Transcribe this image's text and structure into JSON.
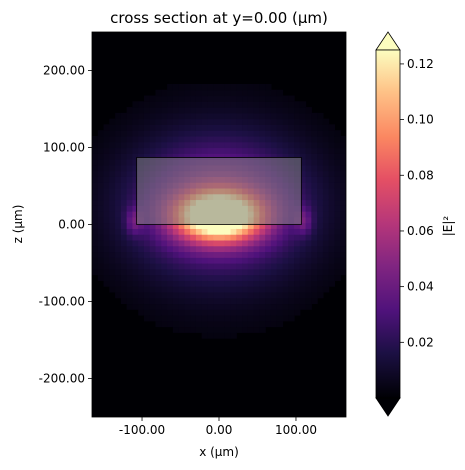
{
  "chart_data": {
    "type": "heatmap",
    "title": "cross section at y=0.00 (µm)",
    "xlabel": "x (µm)",
    "ylabel": "z (µm)",
    "xlim": [
      -165,
      165
    ],
    "ylim": [
      -250,
      250
    ],
    "x_ticks": [
      -100,
      0,
      100
    ],
    "x_tick_labels": [
      "-100.00",
      "0.00",
      "100.00"
    ],
    "y_ticks": [
      -200,
      -100,
      0,
      100,
      200
    ],
    "y_tick_labels": [
      "-200.00",
      "-100.00",
      "0.00",
      "100.00",
      "200.00"
    ],
    "colormap": "magma",
    "colorbar": {
      "label": "|E|²",
      "range": [
        0.0,
        0.125
      ],
      "ticks": [
        0.02,
        0.04,
        0.06,
        0.08,
        0.1,
        0.12
      ],
      "tick_labels": [
        "0.02",
        "0.04",
        "0.06",
        "0.08",
        "0.10",
        "0.12"
      ],
      "extend": "both"
    },
    "structures": [
      {
        "name": "waveguide core",
        "x_range": [
          -107,
          107
        ],
        "z_range": [
          0,
          87
        ],
        "fill": "#808080",
        "opacity": 0.55
      }
    ],
    "field_peak": {
      "x": 0,
      "z": 12,
      "value": 0.125
    },
    "grid": false,
    "series": []
  },
  "colors": {
    "background_dark": "#000004",
    "core_outline": "#000000",
    "frame": "#000000"
  }
}
